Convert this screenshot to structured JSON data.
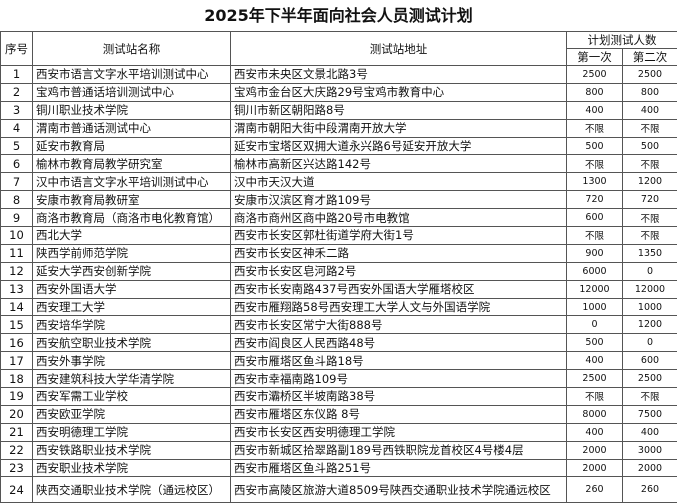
{
  "title": "2025年下半年面向社会人员测试计划",
  "headers": {
    "index": "序号",
    "name": "测试站名称",
    "address": "测试站地址",
    "planned": "计划测试人数",
    "first": "第一次",
    "second": "第二次"
  },
  "rows": [
    {
      "index": "1",
      "name": "西安市语言文字水平培训测试中心",
      "address": "西安市未央区文景北路3号",
      "first": "2500",
      "second": "2500"
    },
    {
      "index": "2",
      "name": "宝鸡市普通话培训测试中心",
      "address": "宝鸡市金台区大庆路29号宝鸡市教育中心",
      "first": "800",
      "second": "800"
    },
    {
      "index": "3",
      "name": "铜川职业技术学院",
      "address": "铜川市新区朝阳路8号",
      "first": "400",
      "second": "400"
    },
    {
      "index": "4",
      "name": "渭南市普通话测试中心",
      "address": "渭南市朝阳大街中段渭南开放大学",
      "first": "不限",
      "second": "不限"
    },
    {
      "index": "5",
      "name": "延安市教育局",
      "address": "延安市宝塔区双拥大道永兴路6号延安开放大学",
      "first": "500",
      "second": "500"
    },
    {
      "index": "6",
      "name": "榆林市教育局教学研究室",
      "address": "榆林市高新区兴达路142号",
      "first": "不限",
      "second": "不限"
    },
    {
      "index": "7",
      "name": "汉中市语言文字水平培训测试中心",
      "address": "汉中市天汉大道",
      "first": "1300",
      "second": "1200"
    },
    {
      "index": "8",
      "name": "安康市教育局教研室",
      "address": "安康市汉滨区育才路109号",
      "first": "720",
      "second": "720"
    },
    {
      "index": "9",
      "name": "商洛市教育局（商洛市电化教育馆）",
      "address": "商洛市商州区商中路20号市电教馆",
      "first": "600",
      "second": "不限"
    },
    {
      "index": "10",
      "name": "西北大学",
      "address": "西安市长安区郭杜街道学府大街1号",
      "first": "不限",
      "second": "不限"
    },
    {
      "index": "11",
      "name": "陕西学前师范学院",
      "address": "西安市长安区神禾二路",
      "first": "900",
      "second": "1350"
    },
    {
      "index": "12",
      "name": "延安大学西安创新学院",
      "address": "西安市长安区皂河路2号",
      "first": "6000",
      "second": "0"
    },
    {
      "index": "13",
      "name": "西安外国语大学",
      "address": "西安市长安南路437号西安外国语大学雁塔校区",
      "first": "12000",
      "second": "12000"
    },
    {
      "index": "14",
      "name": "西安理工大学",
      "address": "西安市雁翔路58号西安理工大学人文与外国语学院",
      "first": "1000",
      "second": "1000"
    },
    {
      "index": "15",
      "name": "西安培华学院",
      "address": "西安市长安区常宁大街888号",
      "first": "0",
      "second": "1200"
    },
    {
      "index": "16",
      "name": "西安航空职业技术学院",
      "address": "西安市阎良区人民西路48号",
      "first": "500",
      "second": "0"
    },
    {
      "index": "17",
      "name": "西安外事学院",
      "address": "西安市雁塔区鱼斗路18号",
      "first": "400",
      "second": "600"
    },
    {
      "index": "18",
      "name": "西安建筑科技大学华清学院",
      "address": "西安市幸福南路109号",
      "first": "2500",
      "second": "2500"
    },
    {
      "index": "19",
      "name": "西安军需工业学校",
      "address": "西安市灞桥区半坡南路38号",
      "first": "不限",
      "second": "不限"
    },
    {
      "index": "20",
      "name": "西安欧亚学院",
      "address": "西安市雁塔区东仪路 8号",
      "first": "8000",
      "second": "7500"
    },
    {
      "index": "21",
      "name": "西安明德理工学院",
      "address": "西安市长安区西安明德理工学院",
      "first": "400",
      "second": "400"
    },
    {
      "index": "22",
      "name": "西安铁路职业技术学院",
      "address": "西安市新城区拾翠路副189号西铁职院龙首校区4号楼4层",
      "first": "2000",
      "second": "3000"
    },
    {
      "index": "23",
      "name": "西安职业技术学院",
      "address": "西安市雁塔区鱼斗路251号",
      "first": "2000",
      "second": "2000"
    },
    {
      "index": "24",
      "name": "陕西交通职业技术学院（通远校区）",
      "address": "西安市高陵区旅游大道8509号陕西交通职业技术学院通远校区",
      "first": "260",
      "second": "260"
    }
  ]
}
